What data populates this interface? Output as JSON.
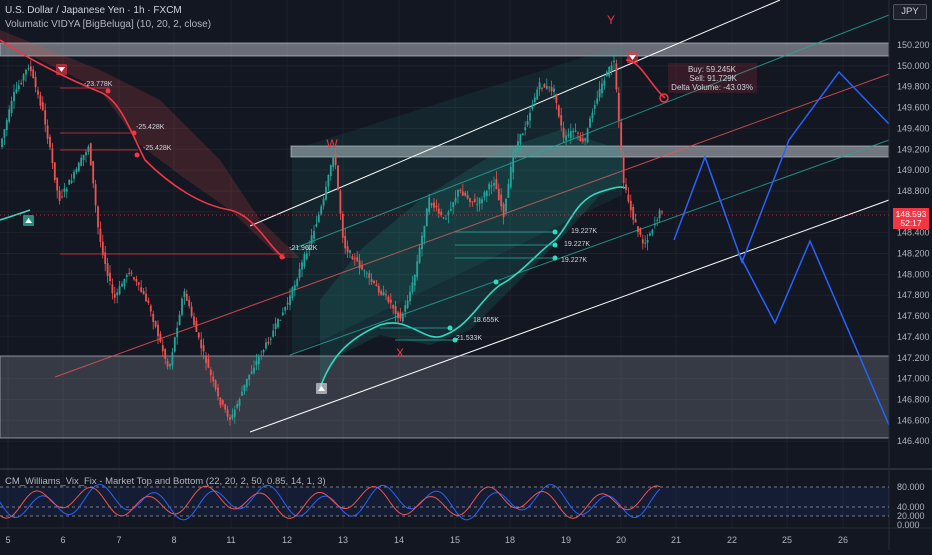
{
  "header": {
    "symbol_line": "U.S. Dollar / Japanese Yen · 1h · FXCM",
    "indicator_line": "Volumatic VIDYA [BigBeluga] (10, 20, 2, close)"
  },
  "currency_button": "JPY",
  "price_axis": {
    "ticks": [
      "150.200",
      "150.000",
      "149.800",
      "149.600",
      "149.400",
      "149.200",
      "149.000",
      "148.800",
      "148.600",
      "148.400",
      "148.200",
      "148.000",
      "147.800",
      "147.600",
      "147.400",
      "147.200",
      "147.000",
      "146.800",
      "146.600",
      "146.400"
    ],
    "last_price": "148.593",
    "countdown": "52:17"
  },
  "time_axis": {
    "ticks": [
      "5",
      "6",
      "7",
      "8",
      "11",
      "12",
      "13",
      "14",
      "15",
      "18",
      "19",
      "20",
      "21",
      "22",
      "25",
      "26"
    ]
  },
  "volume_labels": {
    "delta_1": "-23.778K",
    "delta_2": "-25.428K",
    "delta_3": "-25.428K",
    "delta_4": "-21.962K",
    "delta_5": "19.227K",
    "delta_6": "19.227K",
    "delta_7": "19.227K",
    "delta_8": "18.655K",
    "delta_9": "21.533K"
  },
  "volume_box": {
    "buy": "Buy: 59.245K",
    "sell": "Sell: 91.729K",
    "delta": "Delta Volume: -43.03%"
  },
  "pattern_labels": {
    "w": "W",
    "x": "X",
    "y": "Y"
  },
  "indicator": {
    "title": "CM_Williams_Vix_Fix - Market Top and Bottom (22, 20, 2, 50, 0.85, 14, 1, 3)",
    "ticks": [
      "80.000",
      "40.000",
      "20.000",
      "0.000"
    ]
  },
  "colors": {
    "background": "#131722",
    "bull": "#26a69a",
    "bear": "#ef5350",
    "vidya_up": "#2fdcc2",
    "vidya_down": "#f23645",
    "projection": "#2962ff",
    "zone": "#b2b5be",
    "channel": "#ffffff"
  },
  "chart_data": {
    "type": "candlestick",
    "symbol": "USDJPY",
    "timeframe": "1h",
    "approx_closes": [
      149.6,
      149.9,
      149.5,
      149.2,
      148.8,
      148.2,
      147.6,
      147.4,
      147.2,
      146.9,
      146.7,
      147.1,
      147.8,
      148.4,
      149.1,
      148.4,
      147.8,
      147.6,
      148.2,
      148.9,
      148.6,
      148.8,
      148.9,
      149.5,
      149.9,
      149.6,
      149.4,
      149.8,
      150.1,
      149.0,
      148.4,
      148.593
    ],
    "zones": {
      "upper": [
        150.12,
        150.2
      ],
      "middle": [
        149.14,
        149.24
      ],
      "lower": [
        146.52,
        147.28
      ]
    },
    "ylim": [
      146.3,
      150.35
    ]
  }
}
